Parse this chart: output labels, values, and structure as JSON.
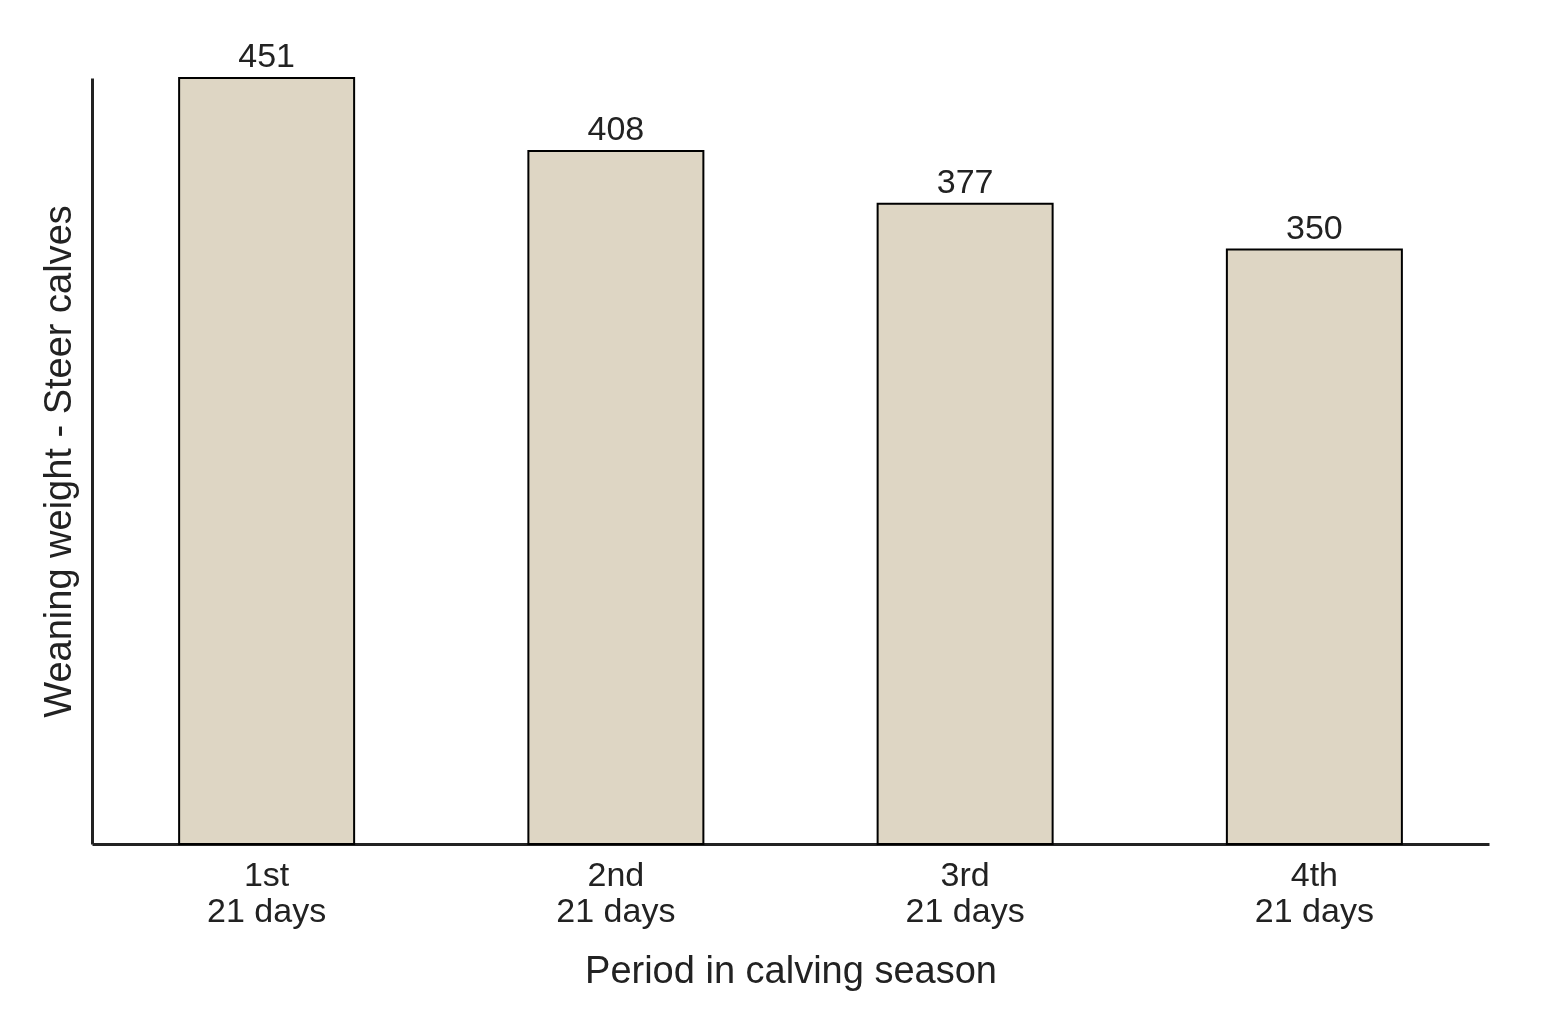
{
  "chart_data": {
    "type": "bar",
    "xlabel": "Period in calving season",
    "ylabel": "Weaning weight - Steer calves",
    "categories": [
      "1st\n21 days",
      "2nd\n21 days",
      "3rd\n21 days",
      "4th\n21 days"
    ],
    "values": [
      451,
      408,
      377,
      350
    ],
    "color": "#ded6c4",
    "data_labels": true
  }
}
